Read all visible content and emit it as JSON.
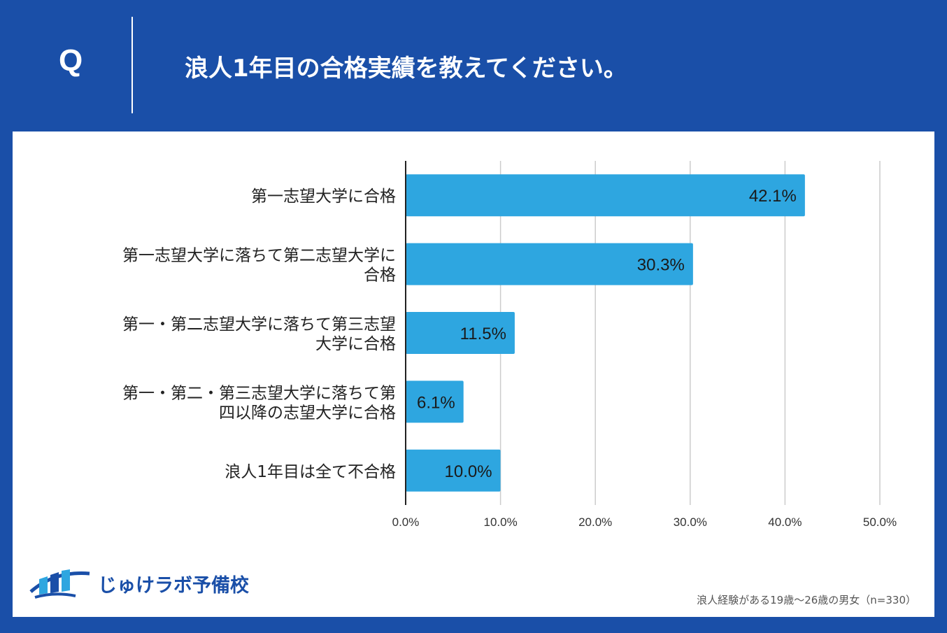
{
  "header": {
    "q_label": "Q",
    "title": "浪人1年目の合格実績を教えてください。"
  },
  "colors": {
    "background": "#1a4fa8",
    "bar": "#2ea6e0",
    "grid": "#cccccc",
    "axis": "#222222"
  },
  "chart_data": {
    "type": "bar",
    "orientation": "horizontal",
    "title": "浪人1年目の合格実績を教えてください。",
    "categories": [
      [
        "第一志望大学に合格"
      ],
      [
        "第一志望大学に落ちて第二志望大学に",
        "合格"
      ],
      [
        "第一・第二志望大学に落ちて第三志望",
        "大学に合格"
      ],
      [
        "第一・第二・第三志望大学に落ちて第",
        "四以降の志望大学に合格"
      ],
      [
        "浪人1年目は全て不合格"
      ]
    ],
    "values": [
      42.1,
      30.3,
      11.5,
      6.1,
      10.0
    ],
    "value_labels": [
      "42.1%",
      "30.3%",
      "11.5%",
      "6.1%",
      "10.0%"
    ],
    "x_ticks": [
      0,
      10,
      20,
      30,
      40,
      50
    ],
    "x_tick_labels": [
      "0.0%",
      "10.0%",
      "20.0%",
      "30.0%",
      "40.0%",
      "50.0%"
    ],
    "xlim": [
      0,
      50
    ],
    "xlabel": "",
    "ylabel": "",
    "grid": true,
    "legend": "none"
  },
  "footer": {
    "logo_text": "じゅけラボ予備校",
    "note": "浪人経験がある19歳～26歳の男女（n=330）"
  }
}
